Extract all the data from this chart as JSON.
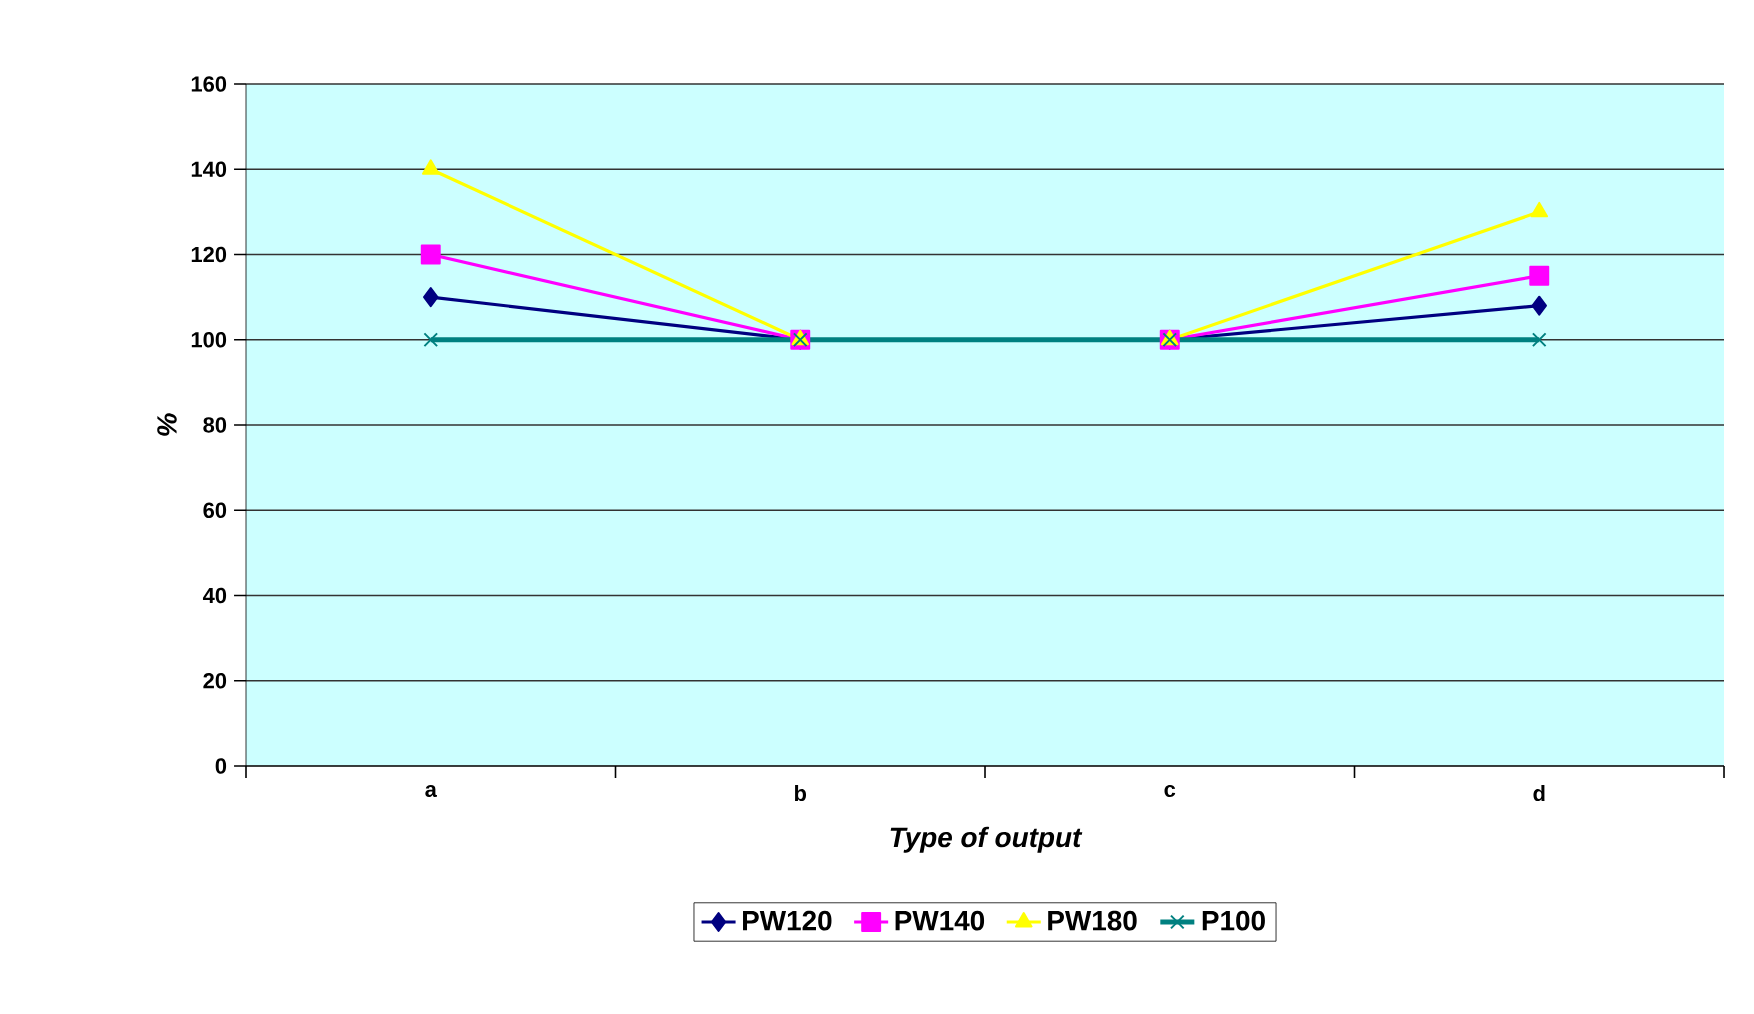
{
  "chart_data": {
    "type": "line",
    "xlabel": "Type of output",
    "ylabel": "%",
    "categories": [
      "a",
      "b",
      "c",
      "d"
    ],
    "series": [
      {
        "name": "PW120",
        "color": "#000080",
        "marker": "diamond",
        "values": [
          110,
          100,
          100,
          108
        ]
      },
      {
        "name": "PW140",
        "color": "#ff00ff",
        "marker": "square",
        "values": [
          120,
          100,
          100,
          115
        ]
      },
      {
        "name": "PW180",
        "color": "#ffff00",
        "marker": "triangle",
        "values": [
          140,
          100,
          100,
          130
        ]
      },
      {
        "name": "P100",
        "color": "#008080",
        "marker": "cross",
        "values": [
          100,
          100,
          100,
          100
        ]
      }
    ],
    "ylim": [
      0,
      160
    ],
    "yticks": [
      0,
      20,
      40,
      60,
      80,
      100,
      120,
      140,
      160
    ],
    "grid": "y",
    "legend": "bottom"
  }
}
